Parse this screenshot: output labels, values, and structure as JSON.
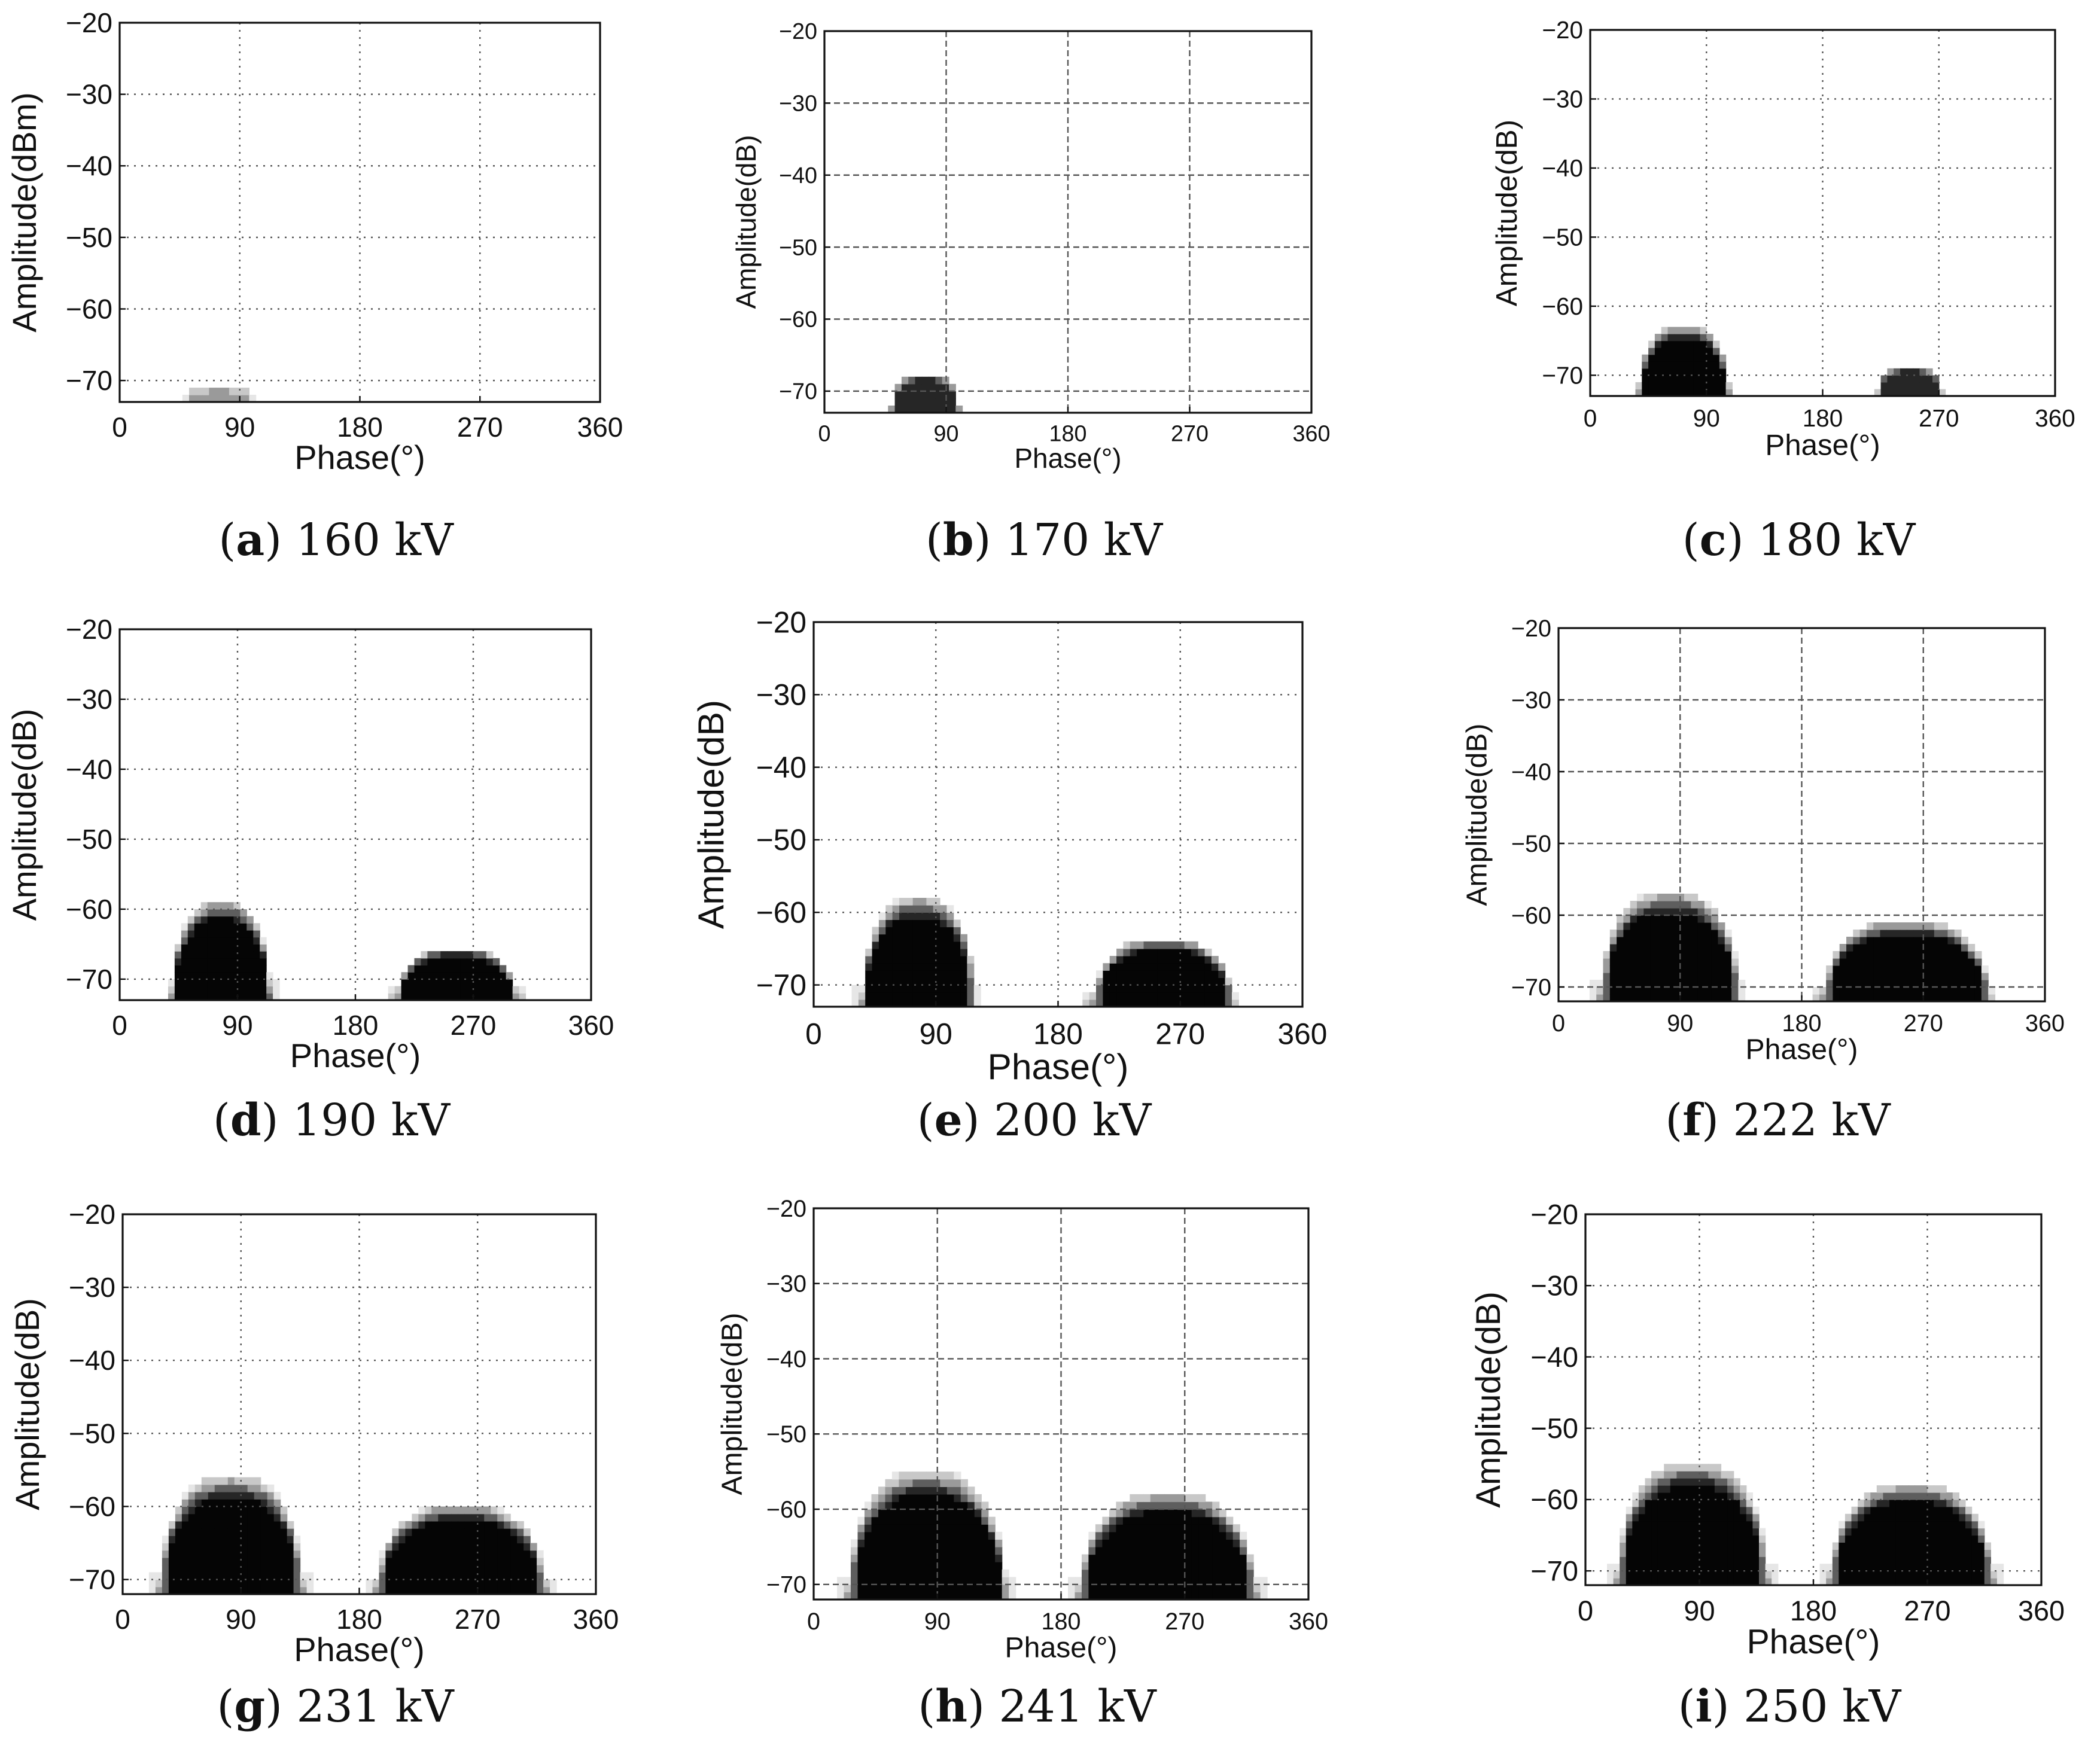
{
  "figure": {
    "panels": [
      {
        "letter": "a",
        "caption_value": "160 kV",
        "ylabel": "Amplitude(dBm)",
        "xlabel": "Phase(°)",
        "yticks": [
          "−20",
          "−30",
          "−40",
          "−50",
          "−60",
          "−70"
        ],
        "xticks": [
          "0",
          "90",
          "180",
          "270",
          "360"
        ]
      },
      {
        "letter": "b",
        "caption_value": "170 kV",
        "ylabel": "Amplitude(dB)",
        "xlabel": "Phase(°)",
        "yticks": [
          "−20",
          "−30",
          "−40",
          "−50",
          "−60",
          "−70"
        ],
        "xticks": [
          "0",
          "90",
          "180",
          "270",
          "360"
        ]
      },
      {
        "letter": "c",
        "caption_value": "180 kV",
        "ylabel": "Amplitude(dB)",
        "xlabel": "Phase(°)",
        "yticks": [
          "−20",
          "−30",
          "−40",
          "−50",
          "−60",
          "−70"
        ],
        "xticks": [
          "0",
          "90",
          "180",
          "270",
          "360"
        ]
      },
      {
        "letter": "d",
        "caption_value": "190 kV",
        "ylabel": "Amplitude(dB)",
        "xlabel": "Phase(°)",
        "yticks": [
          "−20",
          "−30",
          "−40",
          "−50",
          "−60",
          "−70"
        ],
        "xticks": [
          "0",
          "90",
          "180",
          "270",
          "360"
        ]
      },
      {
        "letter": "e",
        "caption_value": "200 kV",
        "ylabel": "Amplitude(dB)",
        "xlabel": "Phase(°)",
        "yticks": [
          "−20",
          "−30",
          "−40",
          "−50",
          "−60",
          "−70"
        ],
        "xticks": [
          "0",
          "90",
          "180",
          "270",
          "360"
        ]
      },
      {
        "letter": "f",
        "caption_value": "222 kV",
        "ylabel": "Amplitude(dB)",
        "xlabel": "Phase(°)",
        "yticks": [
          "−20",
          "−30",
          "−40",
          "−50",
          "−60",
          "−70"
        ],
        "xticks": [
          "0",
          "90",
          "180",
          "270",
          "360"
        ]
      },
      {
        "letter": "g",
        "caption_value": "231 kV",
        "ylabel": "Amplitude(dB)",
        "xlabel": "Phase(°)",
        "yticks": [
          "−20",
          "−30",
          "−40",
          "−50",
          "−60",
          "−70"
        ],
        "xticks": [
          "0",
          "90",
          "180",
          "270",
          "360"
        ]
      },
      {
        "letter": "h",
        "caption_value": "241 kV",
        "ylabel": "Amplitude(dB)",
        "xlabel": "Phase(°)",
        "yticks": [
          "−20",
          "−30",
          "−40",
          "−50",
          "−60",
          "−70"
        ],
        "xticks": [
          "0",
          "90",
          "180",
          "270",
          "360"
        ]
      },
      {
        "letter": "i",
        "caption_value": "250 kV",
        "ylabel": "Amplitude(dB)",
        "xlabel": "Phase(°)",
        "yticks": [
          "−20",
          "−30",
          "−40",
          "−50",
          "−60",
          "−70"
        ],
        "xticks": [
          "0",
          "90",
          "180",
          "270",
          "360"
        ]
      }
    ]
  },
  "colors": {
    "background": "#ffffff",
    "axis": "#111111",
    "grid": "#555555",
    "levels": [
      "#e6e6e6",
      "#c8c8c8",
      "#9a9a9a",
      "#5e5e5e",
      "#262626",
      "#050505"
    ]
  },
  "chart_data": [
    {
      "type": "heatmap",
      "title": "(a) 160 kV",
      "xlabel": "Phase(°)",
      "ylabel": "Amplitude(dBm)",
      "xlim": [
        0,
        360
      ],
      "ylim": [
        -73,
        -20
      ],
      "grid": true,
      "clusters": [
        {
          "center_phase": 72,
          "floor_db": -73,
          "peak_db": -71,
          "halfwidth_deg": 25,
          "intensity": 0.35
        }
      ]
    },
    {
      "type": "heatmap",
      "title": "(b) 170 kV",
      "xlabel": "Phase(°)",
      "ylabel": "Amplitude(dB)",
      "xlim": [
        0,
        360
      ],
      "ylim": [
        -73,
        -20
      ],
      "grid": true,
      "clusters": [
        {
          "center_phase": 72,
          "floor_db": -73,
          "peak_db": -68,
          "halfwidth_deg": 25,
          "intensity": 0.8
        }
      ]
    },
    {
      "type": "heatmap",
      "title": "(c) 180 kV",
      "xlabel": "Phase(°)",
      "ylabel": "Amplitude(dB)",
      "xlim": [
        0,
        360
      ],
      "ylim": [
        -73,
        -20
      ],
      "grid": true,
      "clusters": [
        {
          "center_phase": 70,
          "floor_db": -73,
          "peak_db": -63,
          "halfwidth_deg": 35,
          "intensity": 0.9
        },
        {
          "center_phase": 245,
          "floor_db": -73,
          "peak_db": -69,
          "halfwidth_deg": 25,
          "intensity": 0.7
        }
      ]
    },
    {
      "type": "heatmap",
      "title": "(d) 190 kV",
      "xlabel": "Phase(°)",
      "ylabel": "Amplitude(dB)",
      "xlim": [
        0,
        360
      ],
      "ylim": [
        -73,
        -20
      ],
      "grid": true,
      "clusters": [
        {
          "center_phase": 75,
          "floor_db": -73,
          "peak_db": -59,
          "halfwidth_deg": 38,
          "intensity": 1.0
        },
        {
          "center_phase": 255,
          "floor_db": -73,
          "peak_db": -66,
          "halfwidth_deg": 45,
          "intensity": 1.0
        }
      ]
    },
    {
      "type": "heatmap",
      "title": "(e) 200 kV",
      "xlabel": "Phase(°)",
      "ylabel": "Amplitude(dB)",
      "xlim": [
        0,
        360
      ],
      "ylim": [
        -73,
        -20
      ],
      "grid": true,
      "clusters": [
        {
          "center_phase": 75,
          "floor_db": -73,
          "peak_db": -58,
          "halfwidth_deg": 42,
          "intensity": 1.0
        },
        {
          "center_phase": 255,
          "floor_db": -73,
          "peak_db": -64,
          "halfwidth_deg": 52,
          "intensity": 1.0
        }
      ]
    },
    {
      "type": "heatmap",
      "title": "(f) 222 kV",
      "xlabel": "Phase(°)",
      "ylabel": "Amplitude(dB)",
      "xlim": [
        0,
        360
      ],
      "ylim": [
        -72,
        -20
      ],
      "grid": true,
      "clusters": [
        {
          "center_phase": 80,
          "floor_db": -72,
          "peak_db": -57,
          "halfwidth_deg": 52,
          "intensity": 1.0
        },
        {
          "center_phase": 255,
          "floor_db": -72,
          "peak_db": -61,
          "halfwidth_deg": 62,
          "intensity": 1.0
        }
      ]
    },
    {
      "type": "heatmap",
      "title": "(g) 231 kV",
      "xlabel": "Phase(°)",
      "ylabel": "Amplitude(dB)",
      "xlim": [
        0,
        360
      ],
      "ylim": [
        -72,
        -20
      ],
      "grid": true,
      "clusters": [
        {
          "center_phase": 80,
          "floor_db": -72,
          "peak_db": -56,
          "halfwidth_deg": 55,
          "intensity": 1.0
        },
        {
          "center_phase": 255,
          "floor_db": -72,
          "peak_db": -60,
          "halfwidth_deg": 65,
          "intensity": 1.0
        }
      ]
    },
    {
      "type": "heatmap",
      "title": "(h) 241 kV",
      "xlabel": "Phase(°)",
      "ylabel": "Amplitude(dB)",
      "xlim": [
        0,
        360
      ],
      "ylim": [
        -72,
        -20
      ],
      "grid": true,
      "clusters": [
        {
          "center_phase": 80,
          "floor_db": -72,
          "peak_db": -55,
          "halfwidth_deg": 58,
          "intensity": 1.0
        },
        {
          "center_phase": 255,
          "floor_db": -72,
          "peak_db": -58,
          "halfwidth_deg": 65,
          "intensity": 1.0
        }
      ]
    },
    {
      "type": "heatmap",
      "title": "(i) 250 kV",
      "xlabel": "Phase(°)",
      "ylabel": "Amplitude(dB)",
      "xlim": [
        0,
        360
      ],
      "ylim": [
        -72,
        -20
      ],
      "grid": true,
      "clusters": [
        {
          "center_phase": 82,
          "floor_db": -72,
          "peak_db": -55,
          "halfwidth_deg": 60,
          "intensity": 1.0
        },
        {
          "center_phase": 255,
          "floor_db": -72,
          "peak_db": -58,
          "halfwidth_deg": 65,
          "intensity": 1.0
        }
      ]
    }
  ]
}
